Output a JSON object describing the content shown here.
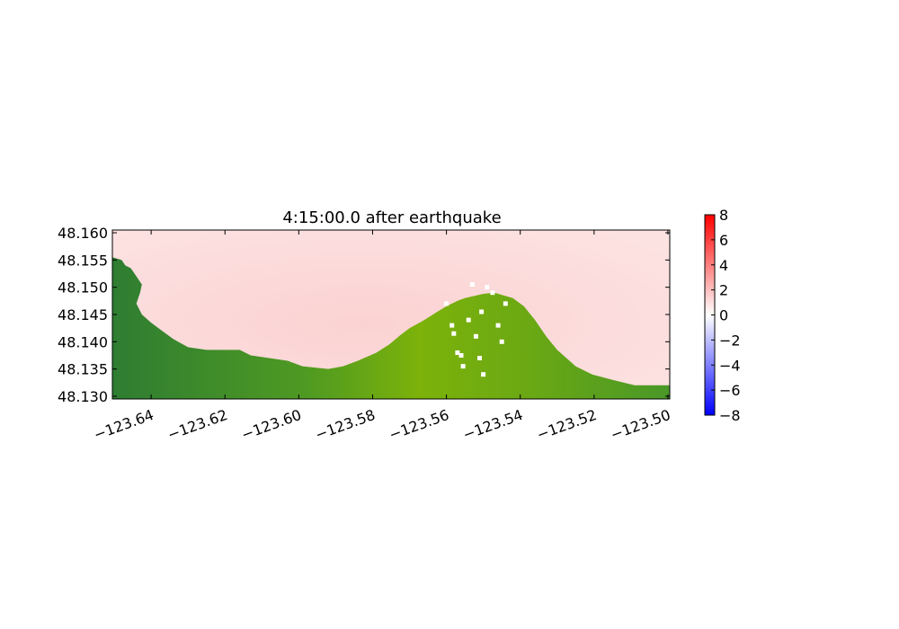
{
  "chart_data": {
    "type": "heatmap",
    "title": "4:15:00.0 after earthquake",
    "xlabel": "",
    "ylabel": "",
    "xlim": [
      -123.6505,
      -123.4995
    ],
    "ylim": [
      48.1295,
      48.1605
    ],
    "x_ticks": [
      -123.64,
      -123.62,
      -123.6,
      -123.58,
      -123.56,
      -123.54,
      -123.52,
      -123.5
    ],
    "x_tick_labels": [
      "−123.64",
      "−123.62",
      "−123.60",
      "−123.58",
      "−123.56",
      "−123.54",
      "−123.52",
      "−123.50"
    ],
    "y_ticks": [
      48.13,
      48.135,
      48.14,
      48.145,
      48.15,
      48.155,
      48.16
    ],
    "y_tick_labels": [
      "48.130",
      "48.135",
      "48.140",
      "48.145",
      "48.150",
      "48.155",
      "48.160"
    ],
    "colorbar": {
      "range": [
        -8,
        8
      ],
      "ticks": [
        8,
        6,
        4,
        2,
        0,
        -2,
        -4,
        -6,
        -8
      ],
      "tick_labels": [
        "8",
        "6",
        "4",
        "2",
        "0",
        "−2",
        "−4",
        "−6",
        "−8"
      ],
      "colormap": [
        "#0000ff",
        "#ffffff",
        "#ff0000"
      ]
    },
    "water_surface_color": "#fdd5d5",
    "land_colors": [
      "#2e7d32",
      "#7cb20a"
    ],
    "coastline": [
      [
        -123.6505,
        48.1555
      ],
      [
        -123.648,
        48.155
      ],
      [
        -123.647,
        48.154
      ],
      [
        -123.6455,
        48.1535
      ],
      [
        -123.644,
        48.152
      ],
      [
        -123.6425,
        48.1505
      ],
      [
        -123.643,
        48.149
      ],
      [
        -123.644,
        48.147
      ],
      [
        -123.6425,
        48.145
      ],
      [
        -123.64,
        48.1435
      ],
      [
        -123.637,
        48.142
      ],
      [
        -123.634,
        48.1405
      ],
      [
        -123.63,
        48.139
      ],
      [
        -123.625,
        48.1385
      ],
      [
        -123.616,
        48.1385
      ],
      [
        -123.613,
        48.1375
      ],
      [
        -123.603,
        48.1365
      ],
      [
        -123.599,
        48.1355
      ],
      [
        -123.592,
        48.135
      ],
      [
        -123.588,
        48.1355
      ],
      [
        -123.584,
        48.1365
      ],
      [
        -123.579,
        48.138
      ],
      [
        -123.5755,
        48.1395
      ],
      [
        -123.5725,
        48.1412
      ],
      [
        -123.57,
        48.1425
      ],
      [
        -123.566,
        48.144
      ],
      [
        -123.5625,
        48.1455
      ],
      [
        -123.56,
        48.1465
      ],
      [
        -123.557,
        48.1475
      ],
      [
        -123.555,
        48.148
      ],
      [
        -123.55,
        48.1488
      ],
      [
        -123.547,
        48.149
      ],
      [
        -123.542,
        48.148
      ],
      [
        -123.539,
        48.1465
      ],
      [
        -123.536,
        48.144
      ],
      [
        -123.533,
        48.141
      ],
      [
        -123.53,
        48.1385
      ],
      [
        -123.525,
        48.1355
      ],
      [
        -123.5205,
        48.134
      ],
      [
        -123.515,
        48.133
      ],
      [
        -123.509,
        48.132
      ],
      [
        -123.4995,
        48.132
      ]
    ],
    "dry_patches": [
      [
        -123.56,
        48.147
      ],
      [
        -123.5585,
        48.143
      ],
      [
        -123.558,
        48.1415
      ],
      [
        -123.557,
        48.138
      ],
      [
        -123.556,
        48.1375
      ],
      [
        -123.5555,
        48.1355
      ],
      [
        -123.554,
        48.144
      ],
      [
        -123.553,
        48.1505
      ],
      [
        -123.552,
        48.141
      ],
      [
        -123.551,
        48.137
      ],
      [
        -123.5505,
        48.1455
      ],
      [
        -123.55,
        48.134
      ],
      [
        -123.549,
        48.15
      ],
      [
        -123.5475,
        48.149
      ],
      [
        -123.546,
        48.143
      ],
      [
        -123.545,
        48.14
      ],
      [
        -123.544,
        48.147
      ]
    ]
  }
}
